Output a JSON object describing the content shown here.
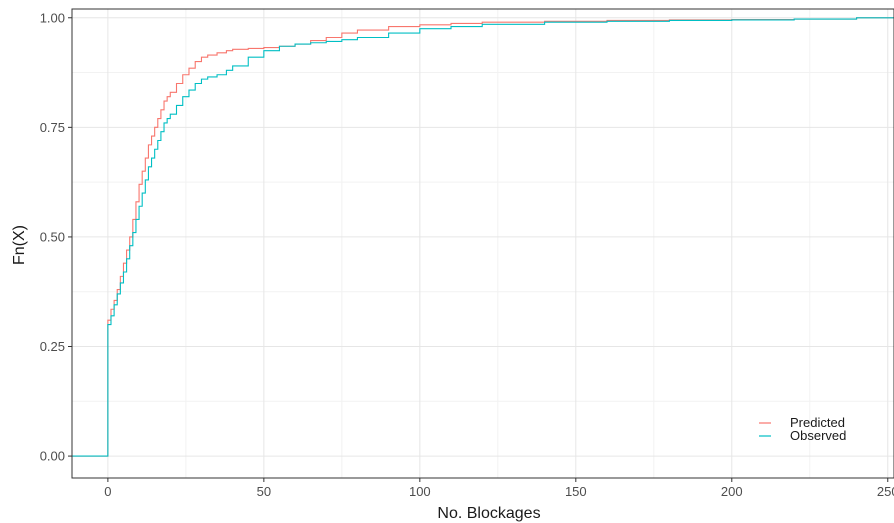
{
  "chart_data": {
    "type": "line",
    "step": true,
    "xlabel": "No. Blockages",
    "ylabel": "Fn(X)",
    "xlim": [
      -11.5,
      252
    ],
    "ylim": [
      -0.05,
      1.02
    ],
    "x_ticks": [
      0,
      50,
      100,
      150,
      200,
      250
    ],
    "x_tick_labels": [
      "0",
      "50",
      "100",
      "150",
      "200",
      "250"
    ],
    "y_ticks": [
      0,
      0.25,
      0.5,
      0.75,
      1
    ],
    "y_tick_labels": [
      "0.00",
      "0.25",
      "0.50",
      "0.75",
      "1.00"
    ],
    "grid": true,
    "legend_position": "bottom-right",
    "series": [
      {
        "name": "Predicted",
        "color": "#f8766d",
        "x": [
          -11.5,
          0,
          1,
          2,
          3,
          4,
          5,
          6,
          7,
          8,
          9,
          10,
          11,
          12,
          13,
          14,
          15,
          16,
          17,
          18,
          19,
          20,
          22,
          24,
          26,
          28,
          30,
          32,
          35,
          38,
          40,
          45,
          50,
          55,
          60,
          65,
          70,
          75,
          80,
          90,
          100,
          110,
          120,
          140,
          160,
          180,
          200,
          220,
          240,
          252
        ],
        "y": [
          0,
          0.31,
          0.335,
          0.355,
          0.38,
          0.41,
          0.44,
          0.47,
          0.5,
          0.54,
          0.58,
          0.62,
          0.65,
          0.68,
          0.71,
          0.73,
          0.75,
          0.77,
          0.79,
          0.81,
          0.82,
          0.83,
          0.85,
          0.87,
          0.885,
          0.9,
          0.91,
          0.915,
          0.92,
          0.925,
          0.928,
          0.93,
          0.932,
          0.935,
          0.94,
          0.948,
          0.955,
          0.965,
          0.972,
          0.98,
          0.984,
          0.987,
          0.99,
          0.992,
          0.994,
          0.995,
          0.996,
          0.997,
          1.0,
          1.0
        ]
      },
      {
        "name": "Observed",
        "color": "#00bfc4",
        "x": [
          -11.5,
          0,
          1,
          2,
          3,
          4,
          5,
          6,
          7,
          8,
          9,
          10,
          11,
          12,
          13,
          14,
          15,
          16,
          17,
          18,
          19,
          20,
          22,
          24,
          26,
          28,
          30,
          32,
          35,
          38,
          40,
          45,
          50,
          55,
          60,
          65,
          70,
          75,
          80,
          90,
          100,
          110,
          120,
          140,
          160,
          180,
          200,
          220,
          240,
          252
        ],
        "y": [
          0,
          0.3,
          0.32,
          0.345,
          0.37,
          0.395,
          0.42,
          0.45,
          0.48,
          0.51,
          0.54,
          0.57,
          0.6,
          0.63,
          0.66,
          0.68,
          0.7,
          0.72,
          0.74,
          0.76,
          0.77,
          0.78,
          0.8,
          0.82,
          0.835,
          0.85,
          0.86,
          0.865,
          0.87,
          0.88,
          0.89,
          0.91,
          0.925,
          0.935,
          0.94,
          0.943,
          0.946,
          0.95,
          0.955,
          0.965,
          0.975,
          0.98,
          0.985,
          0.99,
          0.992,
          0.994,
          0.995,
          0.997,
          1.0,
          1.0
        ]
      }
    ]
  }
}
